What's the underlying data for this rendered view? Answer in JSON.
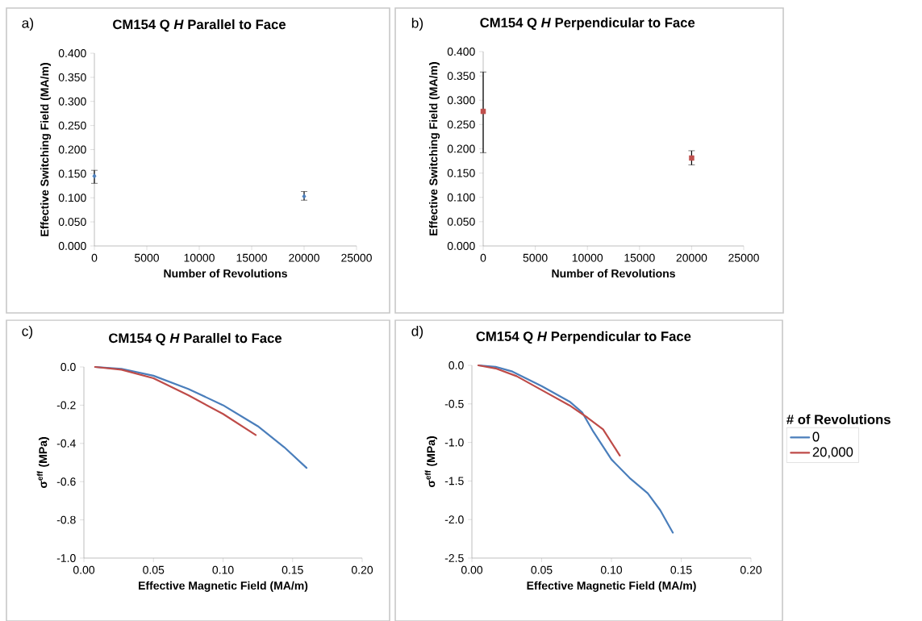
{
  "chart_data": [
    {
      "type": "scatter",
      "title": "CM154 Q *H* Parallel to Face",
      "xlabel": "Number of Revolutions",
      "ylabel": "Effective Switching Field (MA/m)",
      "annotations": [
        "a)"
      ],
      "marker": "diamond",
      "series": [
        {
          "color": "#4f81bd",
          "x": [
            0,
            20000
          ],
          "values": [
            0.145,
            0.103
          ],
          "errors": [
            [
              0.13,
              0.157
            ],
            [
              0.095,
              0.113
            ]
          ]
        }
      ],
      "xlim": [
        0,
        25000
      ],
      "xticks": [
        0,
        5000,
        10000,
        15000,
        20000,
        25000
      ],
      "ylim": [
        0,
        0.4
      ],
      "yticks": [
        {
          "value": 0,
          "label": "0.000"
        },
        {
          "value": 0.05,
          "label": "0.050"
        },
        {
          "value": 0.1,
          "label": "0.100"
        },
        {
          "value": 0.15,
          "label": "0.150"
        },
        {
          "value": 0.2,
          "label": "0.200"
        },
        {
          "value": 0.25,
          "label": "0.250"
        },
        {
          "value": 0.3,
          "label": "0.300"
        },
        {
          "value": 0.35,
          "label": "0.350"
        },
        {
          "value": 0.4,
          "label": "0.400"
        }
      ]
    },
    {
      "type": "scatter",
      "title": "CM154 Q *H* Perpendicular  to Face",
      "xlabel": "Number of Revolutions",
      "ylabel": "Effective Switching Field (MA/m)",
      "annotations": [
        "b)"
      ],
      "marker": "square",
      "series": [
        {
          "color": "#c0504d",
          "x": [
            0,
            20000
          ],
          "values": [
            0.277,
            0.181
          ],
          "errors": [
            [
              0.192,
              0.358
            ],
            [
              0.167,
              0.196
            ]
          ]
        }
      ],
      "xlim": [
        0,
        25000
      ],
      "xticks": [
        0,
        5000,
        10000,
        15000,
        20000,
        25000
      ],
      "ylim": [
        0,
        0.4
      ],
      "yticks": [
        {
          "value": 0,
          "label": "0.000"
        },
        {
          "value": 0.05,
          "label": "0.050"
        },
        {
          "value": 0.1,
          "label": "0.100"
        },
        {
          "value": 0.15,
          "label": "0.150"
        },
        {
          "value": 0.2,
          "label": "0.200"
        },
        {
          "value": 0.25,
          "label": "0.250"
        },
        {
          "value": 0.3,
          "label": "0.300"
        },
        {
          "value": 0.35,
          "label": "0.350"
        },
        {
          "value": 0.4,
          "label": "0.400"
        }
      ]
    },
    {
      "type": "line",
      "title": "CM154 Q *H* Parallel to Face",
      "xlabel": "Effective Magnetic Field (MA/m)",
      "ylabel": "σ$^{eff}$ (MPa)",
      "annotations": [
        "c)"
      ],
      "series": [
        {
          "color": "#4a7ebb",
          "x": [
            0.0083,
            0.027,
            0.05,
            0.075,
            0.1,
            0.125,
            0.144,
            0.16
          ],
          "values": [
            0,
            -0.01,
            -0.046,
            -0.115,
            -0.2,
            -0.31,
            -0.42,
            -0.528
          ]
        },
        {
          "color": "#be4b48",
          "x": [
            0.008,
            0.027,
            0.05,
            0.075,
            0.1,
            0.1235
          ],
          "values": [
            0,
            -0.014,
            -0.059,
            -0.148,
            -0.246,
            -0.356
          ]
        }
      ],
      "xlim": [
        0,
        0.2
      ],
      "xticks": [
        {
          "value": 0,
          "label": "0.00"
        },
        {
          "value": 0.05,
          "label": "0.05"
        },
        {
          "value": 0.1,
          "label": "0.10"
        },
        {
          "value": 0.15,
          "label": "0.15"
        },
        {
          "value": 0.2,
          "label": "0.20"
        }
      ],
      "ylim": [
        -1,
        0
      ],
      "yticks": [
        {
          "value": -1,
          "label": "-1.0"
        },
        -0.8,
        -0.6,
        -0.4,
        -0.2,
        {
          "value": 0,
          "label": "0.0"
        }
      ]
    },
    {
      "type": "line",
      "title": "CM154 Q *H* Perpendicular  to Face",
      "xlabel": "Effective Magnetic Field (MA/m)",
      "ylabel": "σ$^{eff}$ (MPa)",
      "annotations": [
        "d)"
      ],
      "legend_title": "# of Revolutions",
      "legend": "right",
      "series": [
        {
          "name": "0",
          "color": "#4a7ebb",
          "x": [
            0.005,
            0.017,
            0.029,
            0.05,
            0.07,
            0.079,
            0.087,
            0.1,
            0.113,
            0.126,
            0.135,
            0.144
          ],
          "values": [
            0,
            -0.02,
            -0.08,
            -0.27,
            -0.47,
            -0.61,
            -0.86,
            -1.22,
            -1.46,
            -1.66,
            -1.88,
            -2.17
          ]
        },
        {
          "name": "20,000",
          "color": "#be4b48",
          "x": [
            0.0046,
            0.017,
            0.032,
            0.05,
            0.07,
            0.083,
            0.094,
            0.106
          ],
          "values": [
            0,
            -0.04,
            -0.14,
            -0.32,
            -0.52,
            -0.68,
            -0.83,
            -1.17
          ]
        }
      ],
      "xlim": [
        0,
        0.2
      ],
      "xticks": [
        {
          "value": 0,
          "label": "0.00"
        },
        {
          "value": 0.05,
          "label": "0.05"
        },
        {
          "value": 0.1,
          "label": "0.10"
        },
        {
          "value": 0.15,
          "label": "0.15"
        },
        {
          "value": 0.2,
          "label": "0.20"
        }
      ],
      "ylim": [
        -2.5,
        0
      ],
      "yticks": [
        {
          "value": -2.5,
          "label": "-2.5"
        },
        {
          "value": -2,
          "label": "-2.0"
        },
        {
          "value": -1.5,
          "label": "-1.5"
        },
        {
          "value": -1,
          "label": "-1.0"
        },
        {
          "value": -0.5,
          "label": "-0.5"
        },
        {
          "value": 0,
          "label": "0.0"
        }
      ]
    }
  ]
}
